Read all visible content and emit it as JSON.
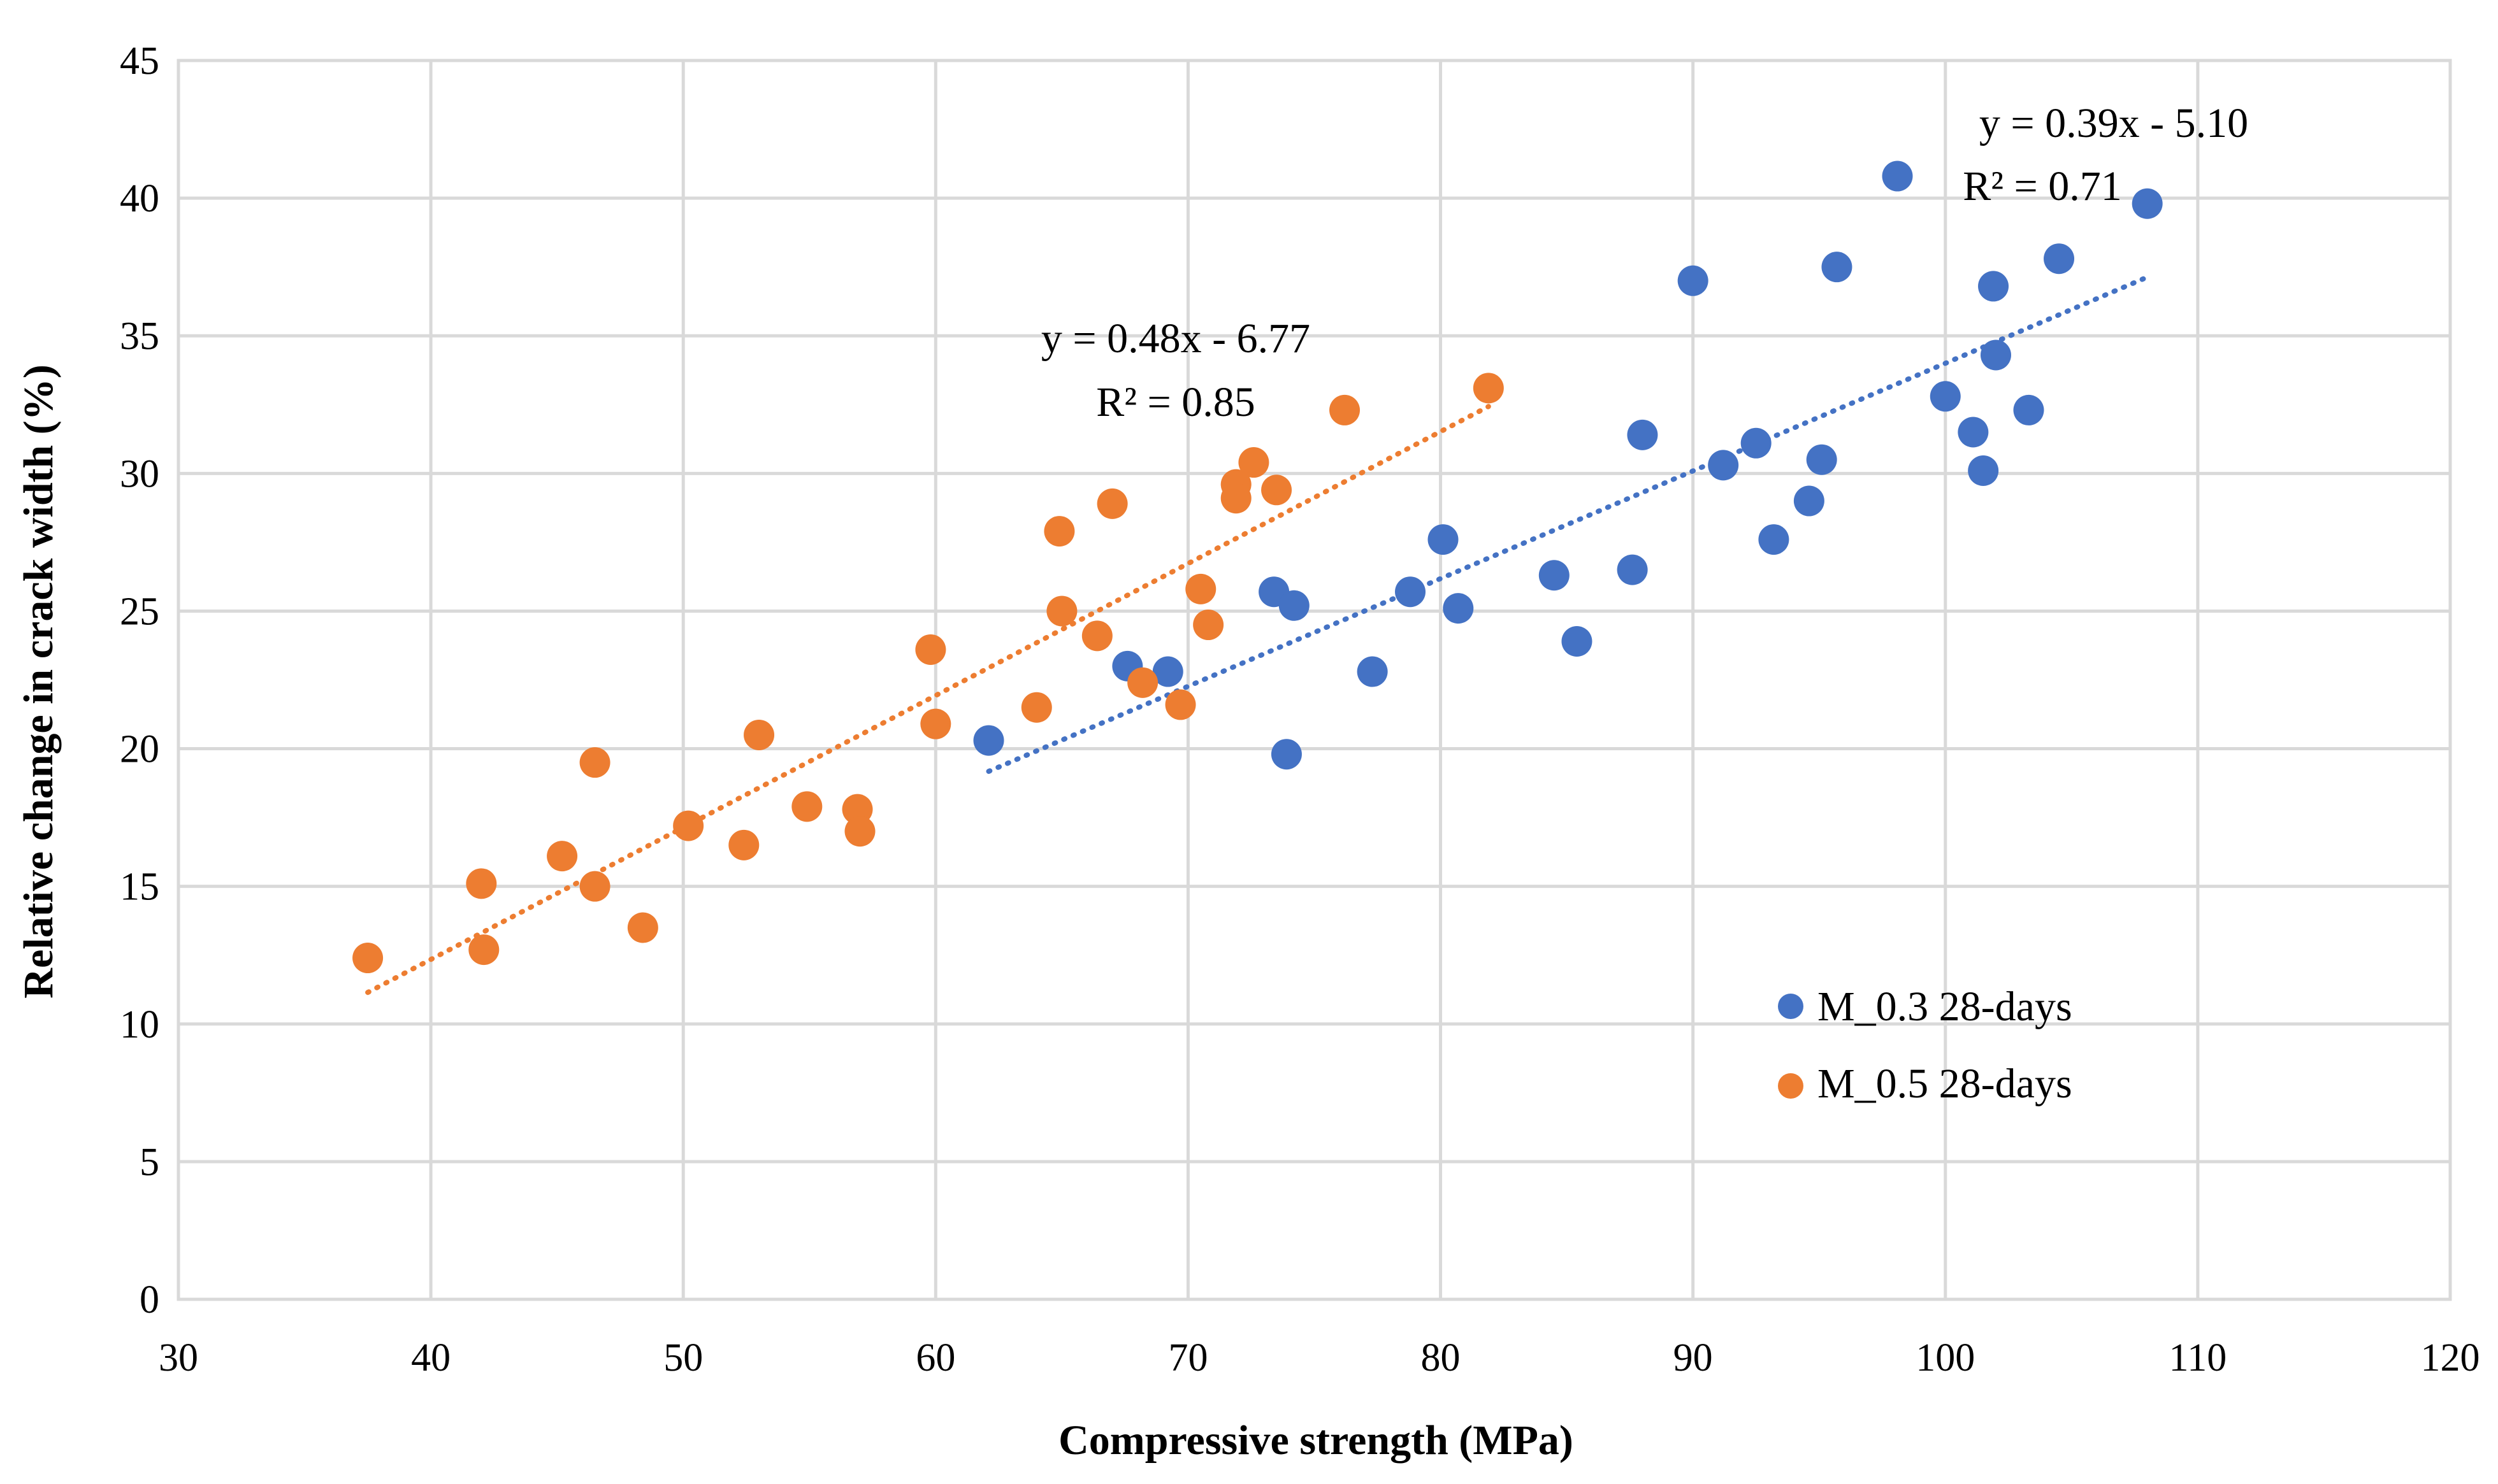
{
  "chart_data": {
    "type": "scatter",
    "title": "",
    "xlabel": "Compressive strength (MPa)",
    "ylabel": "Relative change in crack width (%)",
    "xlim": [
      30,
      120
    ],
    "ylim": [
      0,
      45
    ],
    "xticks": [
      30,
      40,
      50,
      60,
      70,
      80,
      90,
      100,
      110,
      120
    ],
    "yticks": [
      0,
      5,
      10,
      15,
      20,
      25,
      30,
      35,
      40,
      45
    ],
    "grid": true,
    "legend_position": "lower-right",
    "series": [
      {
        "name": "M_0.3 28-days",
        "color": "#4472c4",
        "points": [
          [
            62.1,
            20.3
          ],
          [
            67.6,
            23.0
          ],
          [
            69.2,
            22.8
          ],
          [
            73.4,
            25.7
          ],
          [
            74.2,
            25.2
          ],
          [
            73.9,
            19.8
          ],
          [
            77.3,
            22.8
          ],
          [
            78.8,
            25.7
          ],
          [
            80.1,
            27.6
          ],
          [
            80.7,
            25.1
          ],
          [
            84.5,
            26.3
          ],
          [
            85.4,
            23.9
          ],
          [
            87.6,
            26.5
          ],
          [
            88.0,
            31.4
          ],
          [
            90.0,
            37.0
          ],
          [
            91.2,
            30.3
          ],
          [
            92.5,
            31.1
          ],
          [
            93.2,
            27.6
          ],
          [
            94.6,
            29.0
          ],
          [
            95.1,
            30.5
          ],
          [
            95.7,
            37.5
          ],
          [
            98.1,
            40.8
          ],
          [
            100.0,
            32.8
          ],
          [
            101.1,
            31.5
          ],
          [
            101.5,
            30.1
          ],
          [
            101.9,
            36.8
          ],
          [
            102.0,
            34.3
          ],
          [
            103.3,
            32.3
          ],
          [
            104.5,
            37.8
          ],
          [
            108.0,
            39.8
          ]
        ],
        "trendline": {
          "style": "dotted",
          "x_range": [
            62.1,
            108.0
          ],
          "equation": "y = 0.39x - 5.10",
          "r2": "R² = 0.71"
        }
      },
      {
        "name": "M_0.5 28-days",
        "color": "#ed7d31",
        "points": [
          [
            37.5,
            12.4
          ],
          [
            42.0,
            15.1
          ],
          [
            42.1,
            12.7
          ],
          [
            45.2,
            16.1
          ],
          [
            46.5,
            19.5
          ],
          [
            46.5,
            15.0
          ],
          [
            48.4,
            13.5
          ],
          [
            50.2,
            17.2
          ],
          [
            52.4,
            16.5
          ],
          [
            53.0,
            20.5
          ],
          [
            54.9,
            17.9
          ],
          [
            56.9,
            17.8
          ],
          [
            57.0,
            17.0
          ],
          [
            59.8,
            23.6
          ],
          [
            60.0,
            20.9
          ],
          [
            64.0,
            21.5
          ],
          [
            64.9,
            27.9
          ],
          [
            65.0,
            25.0
          ],
          [
            66.4,
            24.1
          ],
          [
            67.0,
            28.9
          ],
          [
            68.2,
            22.4
          ],
          [
            69.7,
            21.6
          ],
          [
            70.5,
            25.8
          ],
          [
            70.8,
            24.5
          ],
          [
            71.9,
            29.6
          ],
          [
            71.9,
            29.1
          ],
          [
            72.6,
            30.4
          ],
          [
            73.5,
            29.4
          ],
          [
            76.2,
            32.3
          ],
          [
            81.9,
            33.1
          ]
        ],
        "trendline": {
          "style": "dotted",
          "x_range": [
            37.5,
            81.9
          ],
          "equation": "y = 0.48x - 6.77",
          "r2": "R² = 0.85"
        }
      }
    ]
  }
}
